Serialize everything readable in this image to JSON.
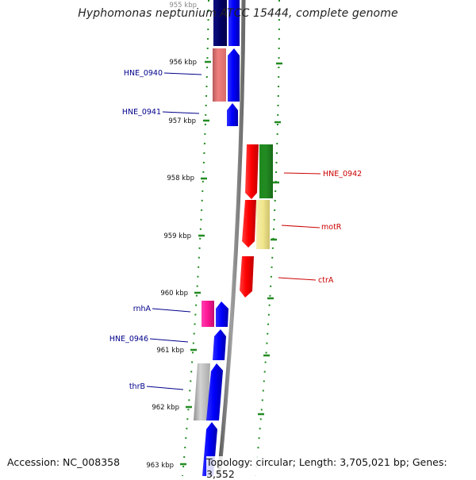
{
  "title": "Hyphomonas neptunium ATCC 15444, complete genome",
  "footer": {
    "accession": "Accession: NC_008358",
    "summary": "Topology: circular; Length: 3,705,021 bp; Genes: 3,552"
  },
  "ticks": [
    "955 kbp",
    "956 kbp",
    "957 kbp",
    "958 kbp",
    "959 kbp",
    "960 kbp",
    "961 kbp",
    "962 kbp",
    "963 kbp"
  ],
  "gene_labels": {
    "forward": [
      "HNE_0940",
      "HNE_0941",
      "rnhA",
      "HNE_0946",
      "thrB"
    ],
    "reverse": [
      "HNE_0942",
      "motR",
      "ctrA"
    ]
  },
  "colors": {
    "forward_label": "#00008b",
    "reverse_label": "#cc0000",
    "cds_forward": "#0000ff",
    "cds_reverse": "#ff0000",
    "tick": "#228b22",
    "backbone": "#808080"
  }
}
